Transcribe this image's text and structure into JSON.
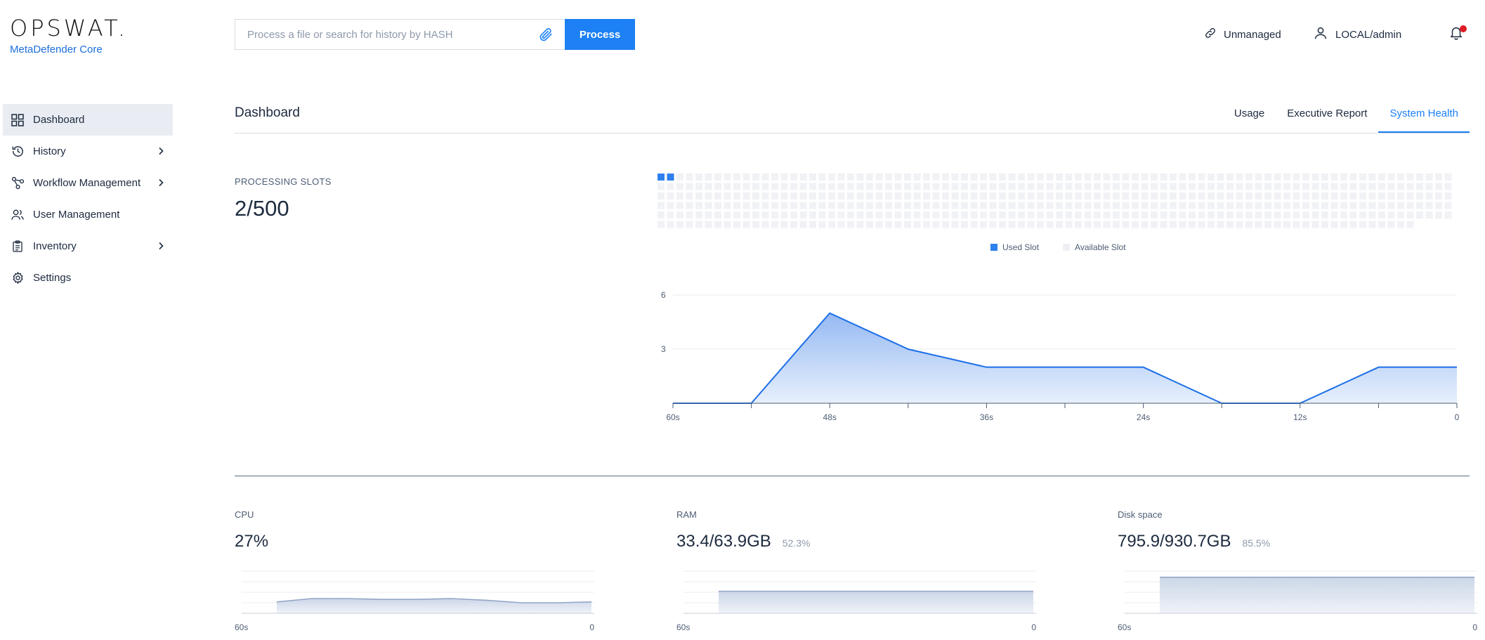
{
  "logo": {
    "wordmark": "OPSWAT.",
    "product": "MetaDefender Core"
  },
  "search": {
    "placeholder": "Process a file or search for history by HASH",
    "value": "",
    "process_label": "Process"
  },
  "header": {
    "unmanaged_label": "Unmanaged",
    "user_label": "LOCAL/admin",
    "notification_dot": true
  },
  "sidebar": {
    "items": [
      {
        "label": "Dashboard",
        "icon": "grid-icon",
        "active": true,
        "expandable": false
      },
      {
        "label": "History",
        "icon": "history-icon",
        "active": false,
        "expandable": true
      },
      {
        "label": "Workflow Management",
        "icon": "workflow-icon",
        "active": false,
        "expandable": true
      },
      {
        "label": "User Management",
        "icon": "users-icon",
        "active": false,
        "expandable": false
      },
      {
        "label": "Inventory",
        "icon": "clipboard-icon",
        "active": false,
        "expandable": true
      },
      {
        "label": "Settings",
        "icon": "gear-icon",
        "active": false,
        "expandable": false
      }
    ]
  },
  "page": {
    "title": "Dashboard",
    "tabs": [
      {
        "label": "Usage",
        "active": false
      },
      {
        "label": "Executive Report",
        "active": false
      },
      {
        "label": "System Health",
        "active": true
      }
    ]
  },
  "processing_slots": {
    "label": "PROCESSING SLOTS",
    "value": "2/500",
    "used": 2,
    "total": 500,
    "legend_used": "Used Slot",
    "legend_available": "Available Slot",
    "colors": {
      "used": "#2f80ed",
      "available": "#f1f2f5"
    }
  },
  "chart_data": [
    {
      "type": "area",
      "title": "",
      "x": [
        "60s",
        "54s",
        "48s",
        "42s",
        "36s",
        "30s",
        "24s",
        "18s",
        "12s",
        "6s",
        "0"
      ],
      "x_tick_labels": [
        "60s",
        "48s",
        "36s",
        "24s",
        "12s",
        "0"
      ],
      "series": [
        {
          "values": [
            0,
            0,
            5,
            3,
            2,
            2,
            2,
            0,
            0,
            2,
            2
          ]
        }
      ],
      "y_ticks": [
        "3",
        "6"
      ],
      "ylim": [
        0,
        6
      ],
      "grid": true,
      "colors": {
        "line": "#1d6fe8",
        "fill_top": "#8fb5f2",
        "fill_bottom": "#e4eefc"
      }
    },
    {
      "type": "area",
      "title": "CPU",
      "x_tick_labels": [
        "60s",
        "0"
      ],
      "series": [
        {
          "values": [
            27,
            35,
            35,
            33,
            33,
            35,
            31,
            25,
            25,
            27
          ]
        }
      ],
      "ylim": [
        0,
        100
      ],
      "grid": true
    },
    {
      "type": "area",
      "title": "RAM",
      "x_tick_labels": [
        "60s",
        "0"
      ],
      "series": [
        {
          "values": [
            52.3,
            52.3
          ]
        }
      ],
      "ylim": [
        0,
        100
      ],
      "grid": true
    },
    {
      "type": "area",
      "title": "Disk space",
      "x_tick_labels": [
        "60s",
        "0"
      ],
      "series": [
        {
          "values": [
            85.5,
            85.5
          ]
        }
      ],
      "ylim": [
        0,
        100
      ],
      "grid": true
    }
  ],
  "metrics": [
    {
      "label": "CPU",
      "value": "27%",
      "percent": ""
    },
    {
      "label": "RAM",
      "value": "33.4/63.9GB",
      "percent": "52.3%"
    },
    {
      "label": "Disk space",
      "value": "795.9/930.7GB",
      "percent": "85.5%"
    }
  ]
}
